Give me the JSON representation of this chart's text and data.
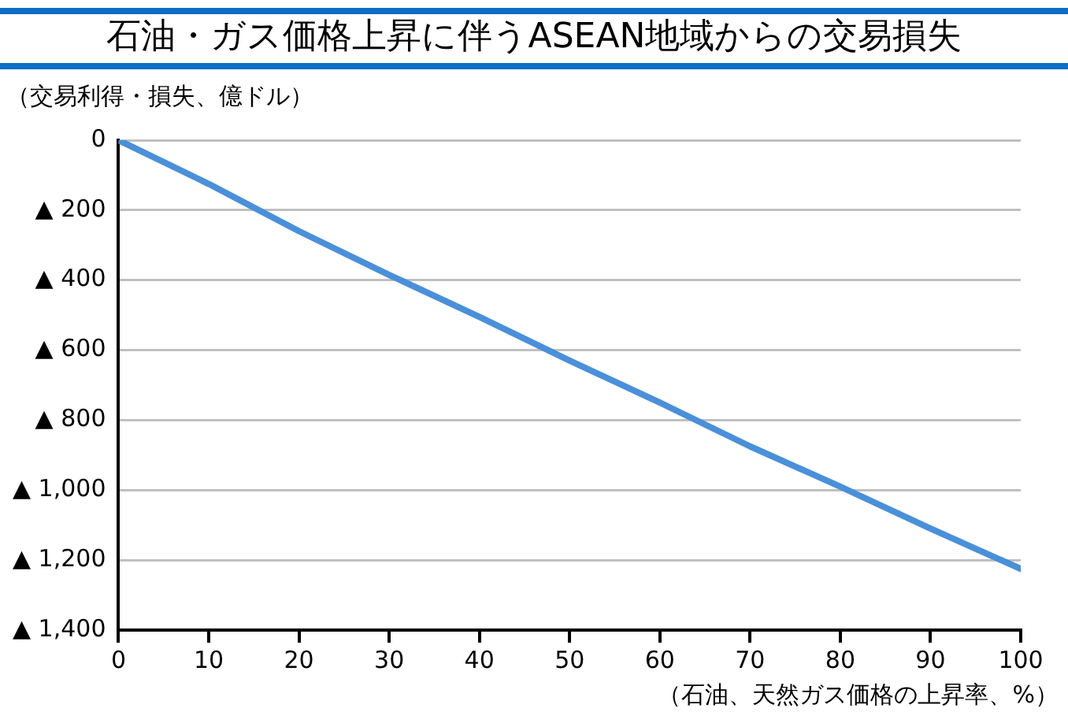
{
  "chart_data": {
    "type": "line",
    "title": "石油・ガス価格上昇に伴うASEAN地域からの交易損失",
    "ylabel": "（交易利得・損失、億ドル）",
    "xlabel": "（石油、天然ガス価格の上昇率、%）",
    "x": [
      0,
      10,
      20,
      30,
      40,
      50,
      60,
      70,
      80,
      90,
      100
    ],
    "series": [
      {
        "color": "#4a90d9",
        "values": [
          0,
          -125,
          -260,
          -385,
          -505,
          -630,
          -750,
          -875,
          -990,
          -1110,
          -1225
        ]
      }
    ],
    "xlim": [
      0,
      100
    ],
    "xticks": [
      0,
      10,
      20,
      30,
      40,
      50,
      60,
      70,
      80,
      90,
      100
    ],
    "ylim": [
      -1400,
      0
    ],
    "yticks": [
      {
        "value": 0,
        "label": "0"
      },
      {
        "value": -200,
        "label": "▲ 200"
      },
      {
        "value": -400,
        "label": "▲ 400"
      },
      {
        "value": -600,
        "label": "▲ 600"
      },
      {
        "value": -800,
        "label": "▲ 800"
      },
      {
        "value": -1000,
        "label": "▲ 1,000"
      },
      {
        "value": -1200,
        "label": "▲ 1,200"
      },
      {
        "value": -1400,
        "label": "▲ 1,400"
      }
    ],
    "grid": "y",
    "legend": false,
    "marker": "none",
    "line_style": "solid"
  }
}
